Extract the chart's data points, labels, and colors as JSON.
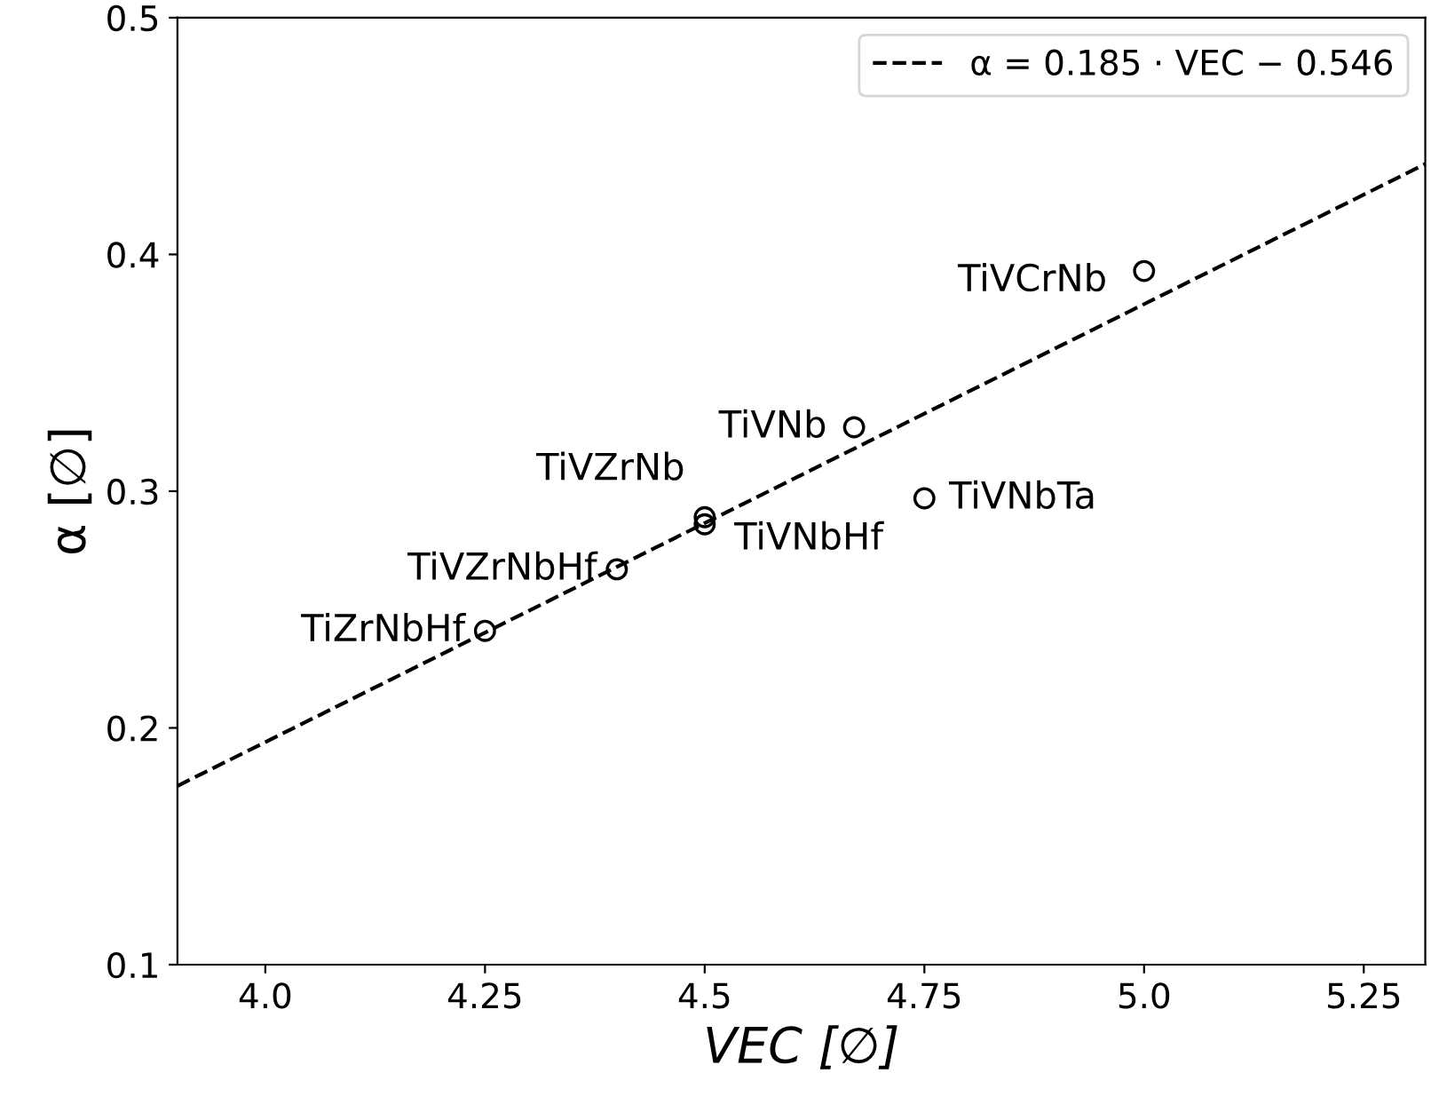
{
  "chart_data": {
    "type": "scatter",
    "xlabel": "VEC [∅]",
    "ylabel": "α [∅]",
    "series": [
      {
        "color": "#000000",
        "marker": "circle",
        "x": [
          4.25,
          4.4,
          4.5,
          4.5,
          4.67,
          4.75,
          5.0
        ],
        "values": [
          0.241,
          0.267,
          0.289,
          0.286,
          0.327,
          0.297,
          0.393
        ]
      },
      {
        "type": "line",
        "name": "α = 0.185 · VEC − 0.546",
        "color": "#000000",
        "line_style": "dashed",
        "marker": "none",
        "x": [
          3.9,
          5.32
        ],
        "values": [
          0.1755,
          0.4382
        ]
      }
    ],
    "annotations": [
      {
        "text": "TiZrNbHf",
        "x": 4.25,
        "y": 0.241
      },
      {
        "text": "TiVZrNbHf",
        "x": 4.4,
        "y": 0.267
      },
      {
        "text": "TiVZrNb",
        "x": 4.5,
        "y": 0.289
      },
      {
        "text": "TiVNbHf",
        "x": 4.5,
        "y": 0.286
      },
      {
        "text": "TiVNb",
        "x": 4.67,
        "y": 0.327
      },
      {
        "text": "TiVNbTa",
        "x": 4.75,
        "y": 0.297
      },
      {
        "text": "TiVCrNb",
        "x": 5.0,
        "y": 0.393
      }
    ],
    "xlim": [
      3.9,
      5.32
    ],
    "ylim": [
      0.1,
      0.5
    ],
    "xticks": [
      {
        "value": 4,
        "label": "4.0"
      },
      4.25,
      4.5,
      4.75,
      {
        "value": 5,
        "label": "5.0"
      },
      5.25
    ],
    "yticks": [
      0.1,
      0.2,
      0.3,
      0.4,
      0.5
    ],
    "grid": false,
    "legend": "top right"
  }
}
